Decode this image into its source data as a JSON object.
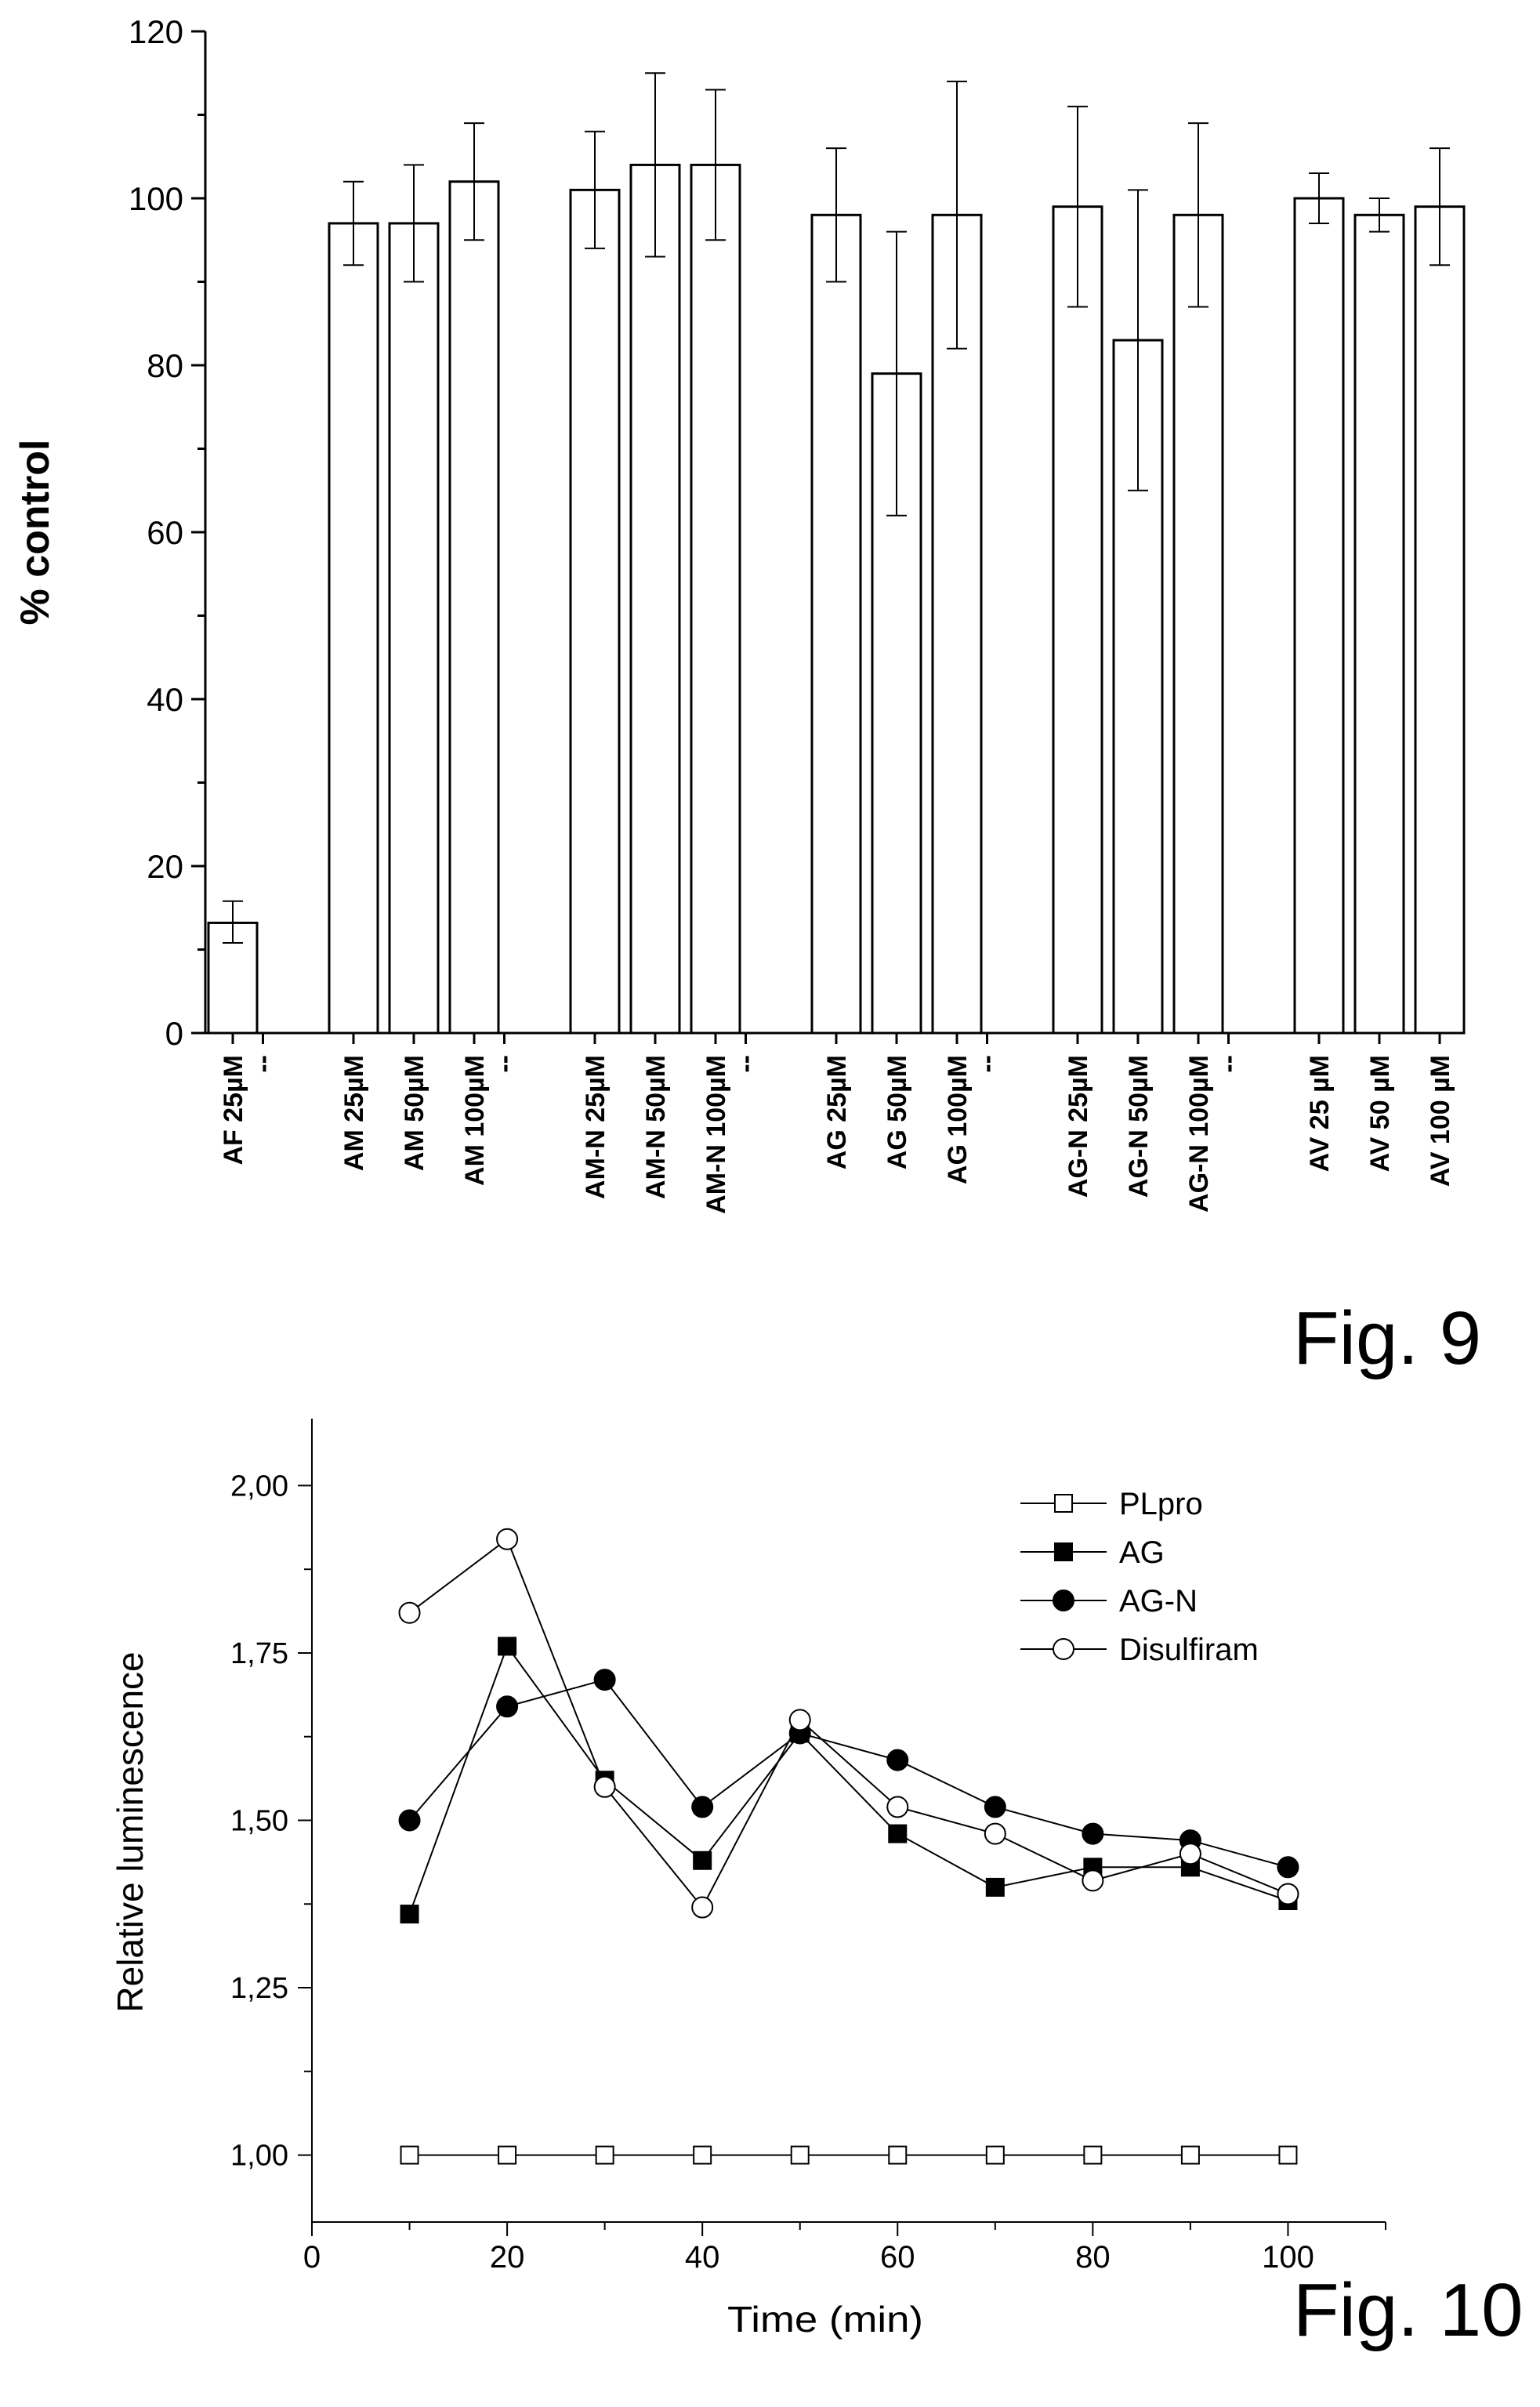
{
  "figures": [
    {
      "label": "Fig. 9"
    },
    {
      "label": "Fig. 10"
    }
  ],
  "chart_data": [
    {
      "type": "bar",
      "ylabel": "% control",
      "ylim": [
        0,
        120
      ],
      "yticks": [
        0,
        20,
        40,
        60,
        80,
        100,
        120
      ],
      "ytick_labels": [
        "0",
        "20",
        "40",
        "60",
        "80",
        "100",
        "120"
      ],
      "separator_label": "--",
      "groups": [
        {
          "bars": [
            {
              "label": "AF 25µM",
              "value": 13.2,
              "err_low": 10.8,
              "err_high": 15.8
            }
          ]
        },
        {
          "bars": [
            {
              "label": "AM 25µM",
              "value": 97,
              "err_low": 92,
              "err_high": 102
            },
            {
              "label": "AM 50µM",
              "value": 97,
              "err_low": 90,
              "err_high": 104
            },
            {
              "label": "AM 100µM",
              "value": 102,
              "err_low": 95,
              "err_high": 109
            }
          ]
        },
        {
          "bars": [
            {
              "label": "AM-N 25µM",
              "value": 101,
              "err_low": 94,
              "err_high": 108
            },
            {
              "label": "AM-N 50µM",
              "value": 104,
              "err_low": 93,
              "err_high": 115
            },
            {
              "label": "AM-N 100µM",
              "value": 104,
              "err_low": 95,
              "err_high": 113
            }
          ]
        },
        {
          "bars": [
            {
              "label": "AG 25µM",
              "value": 98,
              "err_low": 90,
              "err_high": 106
            },
            {
              "label": "AG 50µM",
              "value": 79,
              "err_low": 62,
              "err_high": 96
            },
            {
              "label": "AG 100µM",
              "value": 98,
              "err_low": 82,
              "err_high": 114
            }
          ]
        },
        {
          "bars": [
            {
              "label": "AG-N 25µM",
              "value": 99,
              "err_low": 87,
              "err_high": 111
            },
            {
              "label": "AG-N 50µM",
              "value": 83,
              "err_low": 65,
              "err_high": 101
            },
            {
              "label": "AG-N 100µM",
              "value": 98,
              "err_low": 87,
              "err_high": 109
            }
          ]
        },
        {
          "bars": [
            {
              "label": "AV 25 µM",
              "value": 100,
              "err_low": 97,
              "err_high": 103
            },
            {
              "label": "AV 50 µM",
              "value": 98,
              "err_low": 96,
              "err_high": 100
            },
            {
              "label": "AV 100 µM",
              "value": 99,
              "err_low": 92,
              "err_high": 106
            }
          ]
        }
      ]
    },
    {
      "type": "line",
      "xlabel": "Time (min)",
      "ylabel": "Relative luminescence",
      "xlim": [
        0,
        110
      ],
      "ylim": [
        0.9,
        2.1
      ],
      "xticks": [
        0,
        20,
        40,
        60,
        80,
        100
      ],
      "xtick_labels": [
        "0",
        "20",
        "40",
        "60",
        "80",
        "100"
      ],
      "yticks": [
        1.0,
        1.25,
        1.5,
        1.75,
        2.0
      ],
      "ytick_labels": [
        "1,00",
        "1,25",
        "1,50",
        "1,75",
        "2,00"
      ],
      "legend_position": "top-right",
      "x": [
        10,
        20,
        30,
        40,
        50,
        60,
        70,
        80,
        90,
        100
      ],
      "series": [
        {
          "name": "PLpro",
          "marker": "square-open",
          "values": [
            1.0,
            1.0,
            1.0,
            1.0,
            1.0,
            1.0,
            1.0,
            1.0,
            1.0,
            1.0
          ]
        },
        {
          "name": "AG",
          "marker": "square-filled",
          "values": [
            1.36,
            1.76,
            1.56,
            1.44,
            1.63,
            1.48,
            1.4,
            1.43,
            1.43,
            1.38
          ]
        },
        {
          "name": "AG-N",
          "marker": "circle-filled",
          "values": [
            1.5,
            1.67,
            1.71,
            1.52,
            1.63,
            1.59,
            1.52,
            1.48,
            1.47,
            1.43
          ]
        },
        {
          "name": "Disulfiram",
          "marker": "circle-open",
          "values": [
            1.81,
            1.92,
            1.55,
            1.37,
            1.65,
            1.52,
            1.48,
            1.41,
            1.45,
            1.39
          ]
        }
      ]
    }
  ]
}
